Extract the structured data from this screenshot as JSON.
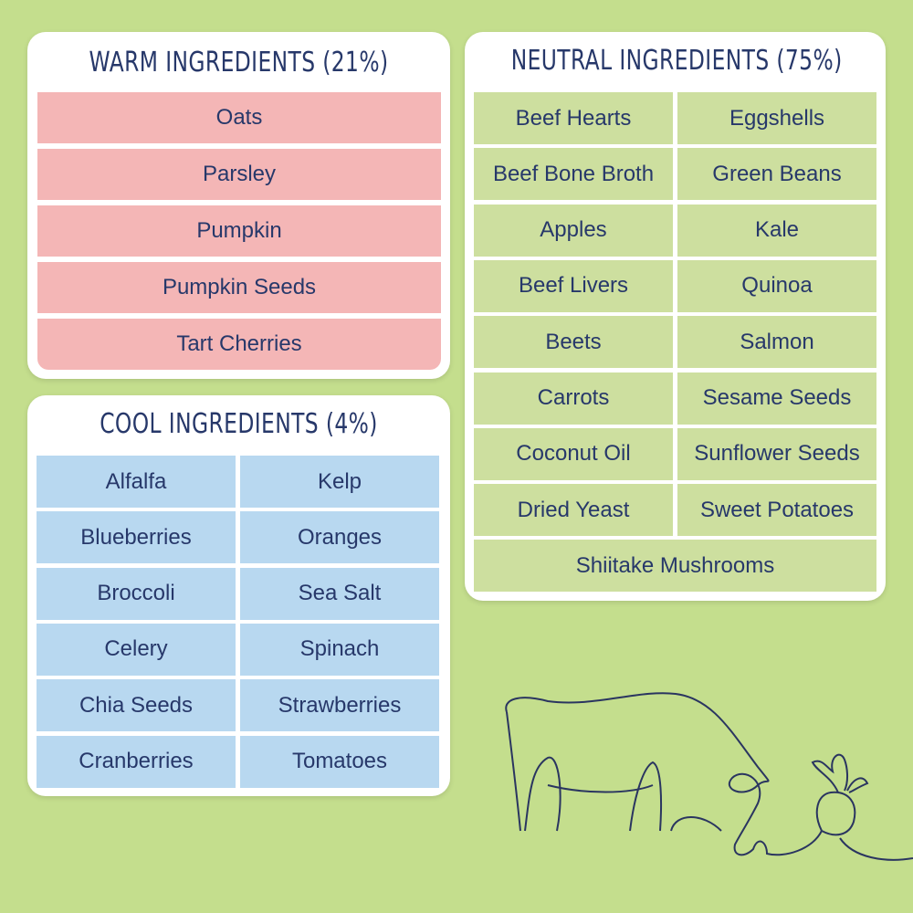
{
  "warm": {
    "title": "WARM INGREDIENTS (21%)",
    "items": [
      "Oats",
      "Parsley",
      "Pumpkin",
      "Pumpkin Seeds",
      "Tart Cherries"
    ]
  },
  "cool": {
    "title": "COOL INGREDIENTS (4%)",
    "items": [
      "Alfalfa",
      "Kelp",
      "Blueberries",
      "Oranges",
      "Broccoli",
      "Sea Salt",
      "Celery",
      "Spinach",
      "Chia Seeds",
      "Strawberries",
      "Cranberries",
      "Tomatoes"
    ]
  },
  "neutral": {
    "title": "NEUTRAL INGREDIENTS (75%)",
    "items": [
      "Beef Hearts",
      "Eggshells",
      "Beef Bone Broth",
      "Green Beans",
      "Apples",
      "Kale",
      "Beef Livers",
      "Quinoa",
      "Beets",
      "Salmon",
      "Carrots",
      "Sesame Seeds",
      "Coconut Oil",
      "Sunflower Seeds",
      "Dried Yeast",
      "Sweet Potatoes",
      "Shiitake Mushrooms"
    ]
  }
}
